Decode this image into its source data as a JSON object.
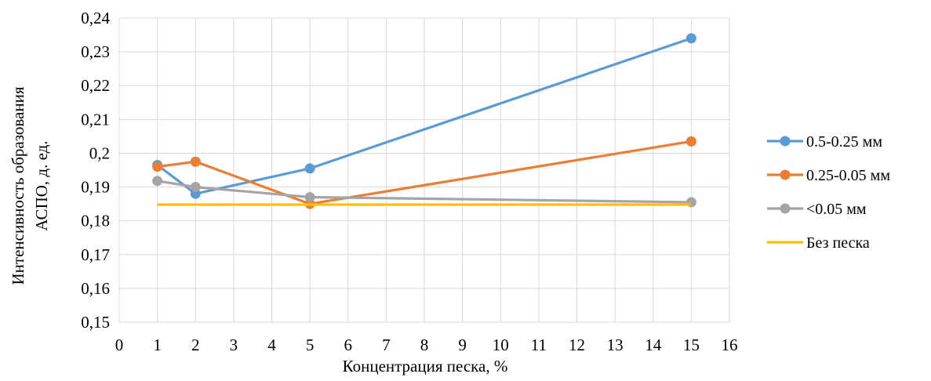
{
  "chart_data": {
    "type": "line",
    "title": "",
    "xlabel": "Концентрация песка, %",
    "ylabel_lines": [
      "Интенсивность образования",
      "АСПО, д. ед."
    ],
    "xlim": [
      0,
      16
    ],
    "ylim": [
      0.15,
      0.24
    ],
    "x_ticks": [
      0,
      1,
      2,
      3,
      4,
      5,
      6,
      7,
      8,
      9,
      10,
      11,
      12,
      13,
      14,
      15,
      16
    ],
    "x_tick_labels": [
      "0",
      "1",
      "2",
      "3",
      "4",
      "5",
      "6",
      "7",
      "8",
      "9",
      "10",
      "11",
      "12",
      "13",
      "14",
      "15",
      "16"
    ],
    "y_ticks": [
      0.15,
      0.16,
      0.17,
      0.18,
      0.19,
      0.2,
      0.21,
      0.22,
      0.23,
      0.24
    ],
    "y_tick_labels": [
      "0,15",
      "0,16",
      "0,17",
      "0,18",
      "0,19",
      "0,2",
      "0,21",
      "0,22",
      "0,23",
      "0,24"
    ],
    "grid": true,
    "legend_position": "right",
    "series": [
      {
        "name": "0.5-0.25 мм",
        "color": "#5b9bd5",
        "markers": true,
        "x": [
          1,
          2,
          5,
          15
        ],
        "y": [
          0.1965,
          0.188,
          0.1955,
          0.234
        ]
      },
      {
        "name": "0.25-0.05 мм",
        "color": "#ed7d31",
        "markers": true,
        "x": [
          1,
          2,
          5,
          15
        ],
        "y": [
          0.196,
          0.1975,
          0.185,
          0.2035
        ]
      },
      {
        "name": "<0.05 мм",
        "color": "#a5a5a5",
        "markers": true,
        "x": [
          1,
          2,
          5,
          15
        ],
        "y": [
          0.1918,
          0.19,
          0.187,
          0.1855
        ]
      },
      {
        "name": "Без песка",
        "color": "#ffc000",
        "markers": false,
        "x": [
          1,
          15
        ],
        "y": [
          0.1848,
          0.1848
        ]
      }
    ]
  }
}
